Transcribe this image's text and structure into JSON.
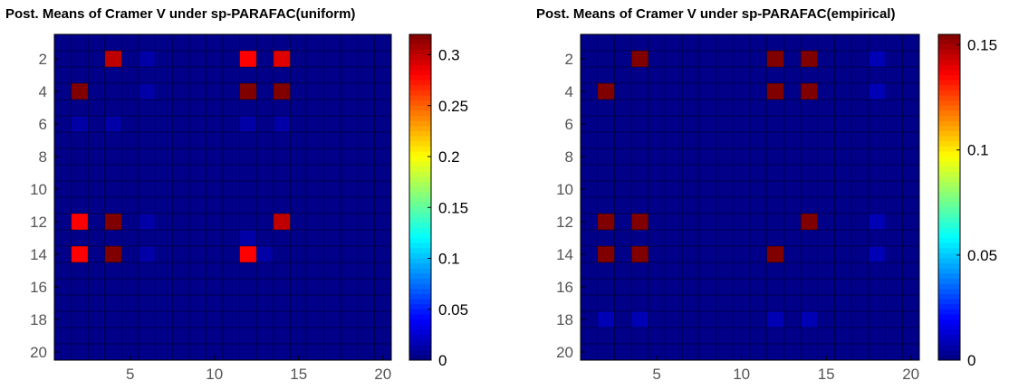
{
  "chart_data": [
    {
      "type": "heatmap",
      "title": "Post. Means of Cramer V under sp-PARAFAC(uniform)",
      "rows": 20,
      "cols": 20,
      "x_ticks": [
        5,
        10,
        15,
        20
      ],
      "y_ticks": [
        2,
        4,
        6,
        8,
        10,
        12,
        14,
        16,
        18,
        20
      ],
      "clim": [
        0,
        0.32
      ],
      "colorbar_ticks": [
        "0",
        "0.05",
        "0.1",
        "0.15",
        "0.2",
        "0.25",
        "0.3"
      ],
      "colorbar_values": [
        0,
        0.05,
        0.1,
        0.15,
        0.2,
        0.25,
        0.3
      ],
      "colormap": "jet",
      "background_value": 0.003,
      "cells": [
        {
          "row": 2,
          "col": 4,
          "value": 0.3
        },
        {
          "row": 2,
          "col": 12,
          "value": 0.28
        },
        {
          "row": 2,
          "col": 14,
          "value": 0.29
        },
        {
          "row": 4,
          "col": 2,
          "value": 0.32
        },
        {
          "row": 4,
          "col": 12,
          "value": 0.32
        },
        {
          "row": 4,
          "col": 14,
          "value": 0.32
        },
        {
          "row": 12,
          "col": 2,
          "value": 0.28
        },
        {
          "row": 12,
          "col": 4,
          "value": 0.32
        },
        {
          "row": 12,
          "col": 14,
          "value": 0.3
        },
        {
          "row": 14,
          "col": 2,
          "value": 0.28
        },
        {
          "row": 14,
          "col": 4,
          "value": 0.32
        },
        {
          "row": 14,
          "col": 12,
          "value": 0.28
        },
        {
          "row": 2,
          "col": 6,
          "value": 0.012
        },
        {
          "row": 4,
          "col": 6,
          "value": 0.012
        },
        {
          "row": 6,
          "col": 2,
          "value": 0.012
        },
        {
          "row": 6,
          "col": 4,
          "value": 0.012
        },
        {
          "row": 6,
          "col": 12,
          "value": 0.012
        },
        {
          "row": 6,
          "col": 14,
          "value": 0.012
        },
        {
          "row": 12,
          "col": 6,
          "value": 0.012
        },
        {
          "row": 14,
          "col": 6,
          "value": 0.012
        },
        {
          "row": 14,
          "col": 13,
          "value": 0.012
        },
        {
          "row": 13,
          "col": 12,
          "value": 0.012
        }
      ]
    },
    {
      "type": "heatmap",
      "title": "Post. Means of Cramer V under sp-PARAFAC(empirical)",
      "rows": 20,
      "cols": 20,
      "x_ticks": [
        5,
        10,
        15,
        20
      ],
      "y_ticks": [
        2,
        4,
        6,
        8,
        10,
        12,
        14,
        16,
        18,
        20
      ],
      "clim": [
        0,
        0.155
      ],
      "colorbar_ticks": [
        "0",
        "0.05",
        "0.1",
        "0.15"
      ],
      "colorbar_values": [
        0,
        0.05,
        0.1,
        0.15
      ],
      "colormap": "jet",
      "background_value": 0.0015,
      "cells": [
        {
          "row": 2,
          "col": 4,
          "value": 0.155
        },
        {
          "row": 2,
          "col": 12,
          "value": 0.155
        },
        {
          "row": 2,
          "col": 14,
          "value": 0.155
        },
        {
          "row": 4,
          "col": 2,
          "value": 0.155
        },
        {
          "row": 4,
          "col": 12,
          "value": 0.155
        },
        {
          "row": 4,
          "col": 14,
          "value": 0.155
        },
        {
          "row": 12,
          "col": 2,
          "value": 0.155
        },
        {
          "row": 12,
          "col": 4,
          "value": 0.155
        },
        {
          "row": 12,
          "col": 14,
          "value": 0.155
        },
        {
          "row": 14,
          "col": 2,
          "value": 0.155
        },
        {
          "row": 14,
          "col": 4,
          "value": 0.155
        },
        {
          "row": 14,
          "col": 12,
          "value": 0.155
        },
        {
          "row": 2,
          "col": 18,
          "value": 0.008
        },
        {
          "row": 4,
          "col": 18,
          "value": 0.008
        },
        {
          "row": 12,
          "col": 18,
          "value": 0.008
        },
        {
          "row": 14,
          "col": 18,
          "value": 0.008
        },
        {
          "row": 18,
          "col": 2,
          "value": 0.008
        },
        {
          "row": 18,
          "col": 4,
          "value": 0.008
        },
        {
          "row": 18,
          "col": 12,
          "value": 0.008
        },
        {
          "row": 18,
          "col": 14,
          "value": 0.008
        }
      ]
    }
  ]
}
